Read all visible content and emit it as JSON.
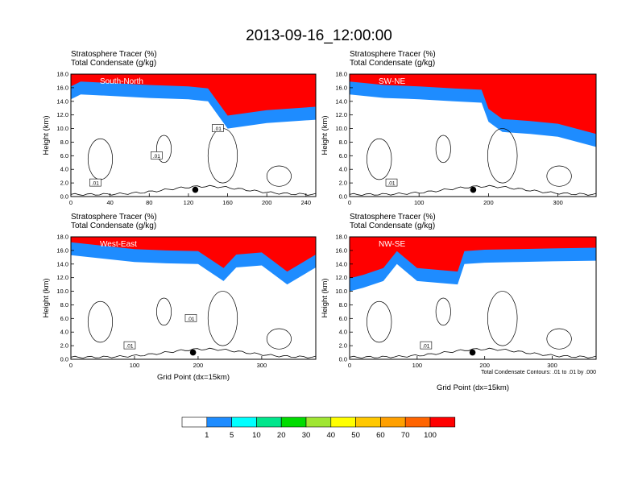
{
  "title": "2013-09-16_12:00:00",
  "colors": {
    "bins": [
      "#ffffff",
      "#1e8cff",
      "#00ffff",
      "#00e68c",
      "#00dc00",
      "#a0e632",
      "#ffff00",
      "#ffc800",
      "#ffa000",
      "#ff6400",
      "#ff0000"
    ]
  },
  "colorbar": {
    "labels": [
      "1",
      "5",
      "10",
      "20",
      "30",
      "40",
      "50",
      "60",
      "70",
      "100"
    ]
  },
  "chart_data": [
    {
      "type": "heatmap",
      "region": "South-North",
      "field_label": "Stratosphere Tracer",
      "field_unit": "(%)",
      "contour_label": "Total Condensate",
      "contour_unit": "(g/kg)",
      "ylabel": "Height (km)",
      "xlabel": "",
      "xlim": [
        0,
        250
      ],
      "ylim": [
        0,
        18
      ],
      "xticks": [
        "0",
        "40",
        "80",
        "120",
        "160",
        "200",
        "240"
      ],
      "yticks": [
        "0.0",
        "2.0",
        "4.0",
        "6.0",
        "8.0",
        "10.0",
        "12.0",
        "14.0",
        "16.0",
        "18.0"
      ],
      "contour_tags": [
        ".01",
        ".01",
        ".01"
      ],
      "tropopause_x": [
        0,
        10,
        40,
        80,
        120,
        140,
        150,
        160,
        200,
        250
      ],
      "tropopause_km": [
        14.3,
        15.0,
        14.8,
        14.5,
        14.3,
        14.0,
        12.0,
        10.0,
        10.8,
        11.3
      ],
      "marker": {
        "x": 127,
        "km": 1.0
      }
    },
    {
      "type": "heatmap",
      "region": "SW-NE",
      "field_label": "Stratosphere Tracer",
      "field_unit": "(%)",
      "contour_label": "Total Condensate",
      "contour_unit": "(g/kg)",
      "ylabel": "Height (km)",
      "xlabel": "",
      "xlim": [
        0,
        355
      ],
      "ylim": [
        0,
        18
      ],
      "xticks": [
        "0",
        "100",
        "200",
        "300"
      ],
      "yticks": [
        "0.0",
        "2.0",
        "4.0",
        "6.0",
        "8.0",
        "10.0",
        "12.0",
        "14.0",
        "16.0",
        "18.0"
      ],
      "contour_tags": [
        ".01"
      ],
      "tropopause_x": [
        0,
        50,
        100,
        150,
        190,
        200,
        220,
        260,
        300,
        355
      ],
      "tropopause_km": [
        15.0,
        14.5,
        14.3,
        14.0,
        13.8,
        11.0,
        9.5,
        9.2,
        8.8,
        7.3
      ],
      "marker": {
        "x": 178,
        "km": 1.0
      }
    },
    {
      "type": "heatmap",
      "region": "West-East",
      "field_label": "Stratosphere Tracer",
      "field_unit": "(%)",
      "contour_label": "Total Condensate",
      "contour_unit": "(g/kg)",
      "ylabel": "Height (km)",
      "xlabel": "Grid Point (dx=15km)",
      "xlim": [
        0,
        385
      ],
      "ylim": [
        0,
        18
      ],
      "xticks": [
        "0",
        "100",
        "200",
        "300"
      ],
      "yticks": [
        "0.0",
        "2.0",
        "4.0",
        "6.0",
        "8.0",
        "10.0",
        "12.0",
        "14.0",
        "16.0",
        "18.0"
      ],
      "contour_tags": [
        ".01",
        ".01"
      ],
      "tropopause_x": [
        0,
        50,
        100,
        150,
        200,
        240,
        260,
        300,
        340,
        385
      ],
      "tropopause_km": [
        15.3,
        14.8,
        14.3,
        14.1,
        14.0,
        11.5,
        13.5,
        13.8,
        11.0,
        13.5
      ],
      "marker": {
        "x": 192,
        "km": 1.0
      }
    },
    {
      "type": "heatmap",
      "region": "NW-SE",
      "field_label": "Stratosphere Tracer",
      "field_unit": "(%)",
      "contour_label": "Total Condensate",
      "contour_unit": "(g/kg)",
      "ylabel": "Height (km)",
      "xlabel": "Grid Point (dx=15km)",
      "xlim": [
        0,
        365
      ],
      "ylim": [
        0,
        18
      ],
      "xticks": [
        "0",
        "100",
        "200",
        "300"
      ],
      "yticks": [
        "0.0",
        "2.0",
        "4.0",
        "6.0",
        "8.0",
        "10.0",
        "12.0",
        "14.0",
        "16.0",
        "18.0"
      ],
      "contour_tags": [
        ".01"
      ],
      "contour_note": "Total Condensate Contours: .01 to .01 by .000",
      "tropopause_x": [
        0,
        20,
        50,
        70,
        100,
        160,
        170,
        200,
        250,
        300,
        365
      ],
      "tropopause_km": [
        10.0,
        10.5,
        11.5,
        14.0,
        11.5,
        11.0,
        14.0,
        14.2,
        14.3,
        14.4,
        14.5
      ],
      "marker": {
        "x": 182,
        "km": 1.0
      }
    }
  ]
}
